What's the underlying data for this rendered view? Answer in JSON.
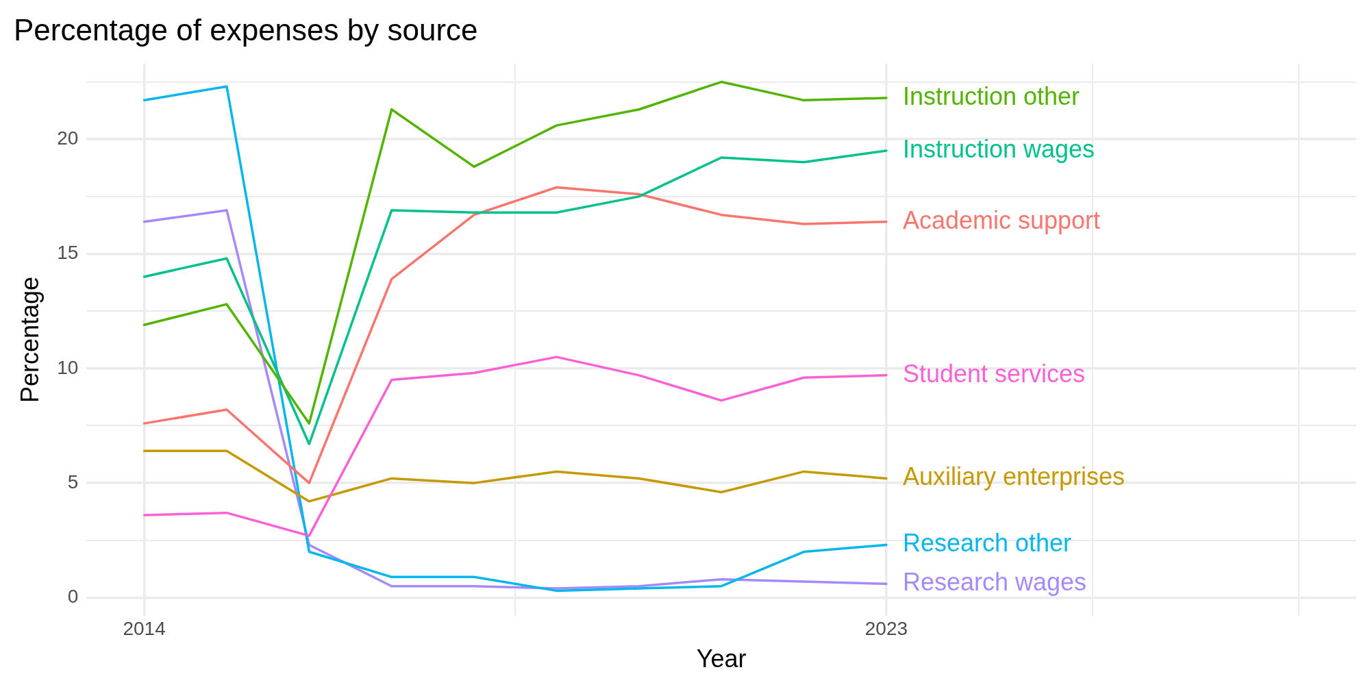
{
  "chart_data": {
    "type": "line",
    "title": "Percentage of expenses by source",
    "xlabel": "Year",
    "ylabel": "Percentage",
    "x": [
      2014,
      2015,
      2016,
      2017,
      2018,
      2019,
      2020,
      2021,
      2022,
      2023
    ],
    "xlim": [
      2013.3,
      2028.7
    ],
    "xticks": [
      2014,
      {
        "value": 2018.5,
        "label": null
      },
      2023,
      {
        "value": 2025.5,
        "label": null
      },
      {
        "value": 2028,
        "label": null
      }
    ],
    "ylim": [
      -0.8,
      23.3
    ],
    "yticks": [
      0,
      {
        "value": 2.5,
        "label": null
      },
      5,
      {
        "value": 7.5,
        "label": null
      },
      10,
      {
        "value": 12.5,
        "label": null
      },
      15,
      {
        "value": 17.5,
        "label": null
      },
      20,
      {
        "value": 22.5,
        "label": null
      }
    ],
    "grid": true,
    "legend": false,
    "marker": "none",
    "line_style": "solid",
    "series": [
      {
        "name": "Instruction other",
        "color": "#53b400",
        "values": [
          11.9,
          12.8,
          7.6,
          21.3,
          18.8,
          20.6,
          21.3,
          22.5,
          21.7,
          21.8
        ]
      },
      {
        "name": "Instruction wages",
        "color": "#00c08b",
        "values": [
          14.0,
          14.8,
          6.7,
          16.9,
          16.8,
          16.8,
          17.5,
          19.2,
          19.0,
          19.5
        ]
      },
      {
        "name": "Academic support",
        "color": "#f8766d",
        "values": [
          7.6,
          8.2,
          5.0,
          13.9,
          16.7,
          17.9,
          17.6,
          16.7,
          16.3,
          16.4
        ]
      },
      {
        "name": "Student services",
        "color": "#fb61d7",
        "values": [
          3.6,
          3.7,
          2.7,
          9.5,
          9.8,
          10.5,
          9.7,
          8.6,
          9.6,
          9.7
        ]
      },
      {
        "name": "Auxiliary enterprises",
        "color": "#c49a00",
        "values": [
          6.4,
          6.4,
          4.2,
          5.2,
          5.0,
          5.5,
          5.2,
          4.6,
          5.5,
          5.2
        ]
      },
      {
        "name": "Research other",
        "color": "#00b6eb",
        "values": [
          21.7,
          22.3,
          2.0,
          0.9,
          0.9,
          0.3,
          0.4,
          0.5,
          2.0,
          2.3
        ]
      },
      {
        "name": "Research wages",
        "color": "#a58aff",
        "values": [
          16.4,
          16.9,
          2.3,
          0.5,
          0.5,
          0.4,
          0.5,
          0.8,
          0.7,
          0.6
        ]
      }
    ]
  }
}
